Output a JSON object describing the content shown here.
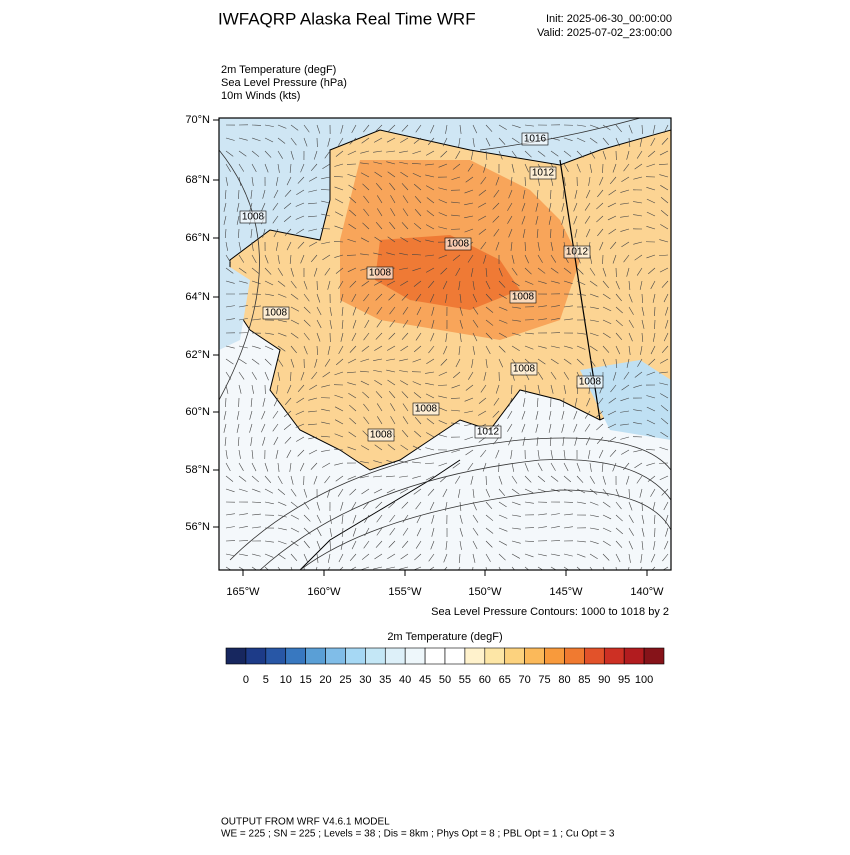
{
  "header": {
    "title": "IWFAQRP Alaska Real Time WRF",
    "init": "Init: 2025-06-30_00:00:00",
    "valid": "Valid: 2025-07-02_23:00:00"
  },
  "fields": [
    "2m Temperature   (degF)",
    "Sea Level Pressure   (hPa)",
    "10m Winds   (kts)"
  ],
  "map": {
    "lat_labels": [
      "70°N",
      "68°N",
      "66°N",
      "64°N",
      "62°N",
      "60°N",
      "58°N",
      "56°N"
    ],
    "lon_labels": [
      "165°W",
      "160°W",
      "155°W",
      "150°W",
      "145°W",
      "140°W"
    ],
    "contour_labels": [
      "1016",
      "1012",
      "1008",
      "1008",
      "1012",
      "1008",
      "1008",
      "1008",
      "1008",
      "1008",
      "1008",
      "1008",
      "1012"
    ],
    "contour_note": "Sea Level Pressure Contours: 1000 to 1018 by 2"
  },
  "colorbar": {
    "title": "2m Temperature  (degF)",
    "colors": [
      "#17275f",
      "#1d3b88",
      "#2857a6",
      "#3878c0",
      "#5a9fd6",
      "#80bde8",
      "#a6d8f4",
      "#c4e7f6",
      "#ddf0f9",
      "#eef7fb",
      "#ffffff",
      "#ffffff",
      "#fff2cc",
      "#fde6a6",
      "#fcd27e",
      "#fbb95a",
      "#f89a3c",
      "#f07a30",
      "#e2522a",
      "#cd3024",
      "#b21c1f",
      "#861319"
    ],
    "labels": [
      "0",
      "5",
      "10",
      "15",
      "20",
      "25",
      "30",
      "35",
      "40",
      "45",
      "50",
      "55",
      "60",
      "65",
      "70",
      "75",
      "80",
      "85",
      "90",
      "95",
      "100"
    ]
  },
  "footer": {
    "line1": "OUTPUT FROM WRF V4.6.1 MODEL",
    "line2": "WE = 225 ; SN = 225 ; Levels = 38 ; Dis = 8km ; Phys Opt = 8 ; PBL Opt = 1 ; Cu Opt = 3"
  }
}
